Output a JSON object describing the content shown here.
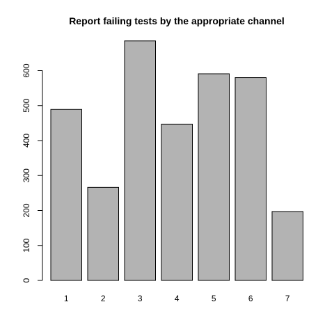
{
  "chart_data": {
    "type": "bar",
    "title": "Report failing tests by the appropriate channel",
    "xlabel": "",
    "ylabel": "",
    "categories": [
      "1",
      "2",
      "3",
      "4",
      "5",
      "6",
      "7"
    ],
    "values": [
      489,
      266,
      685,
      447,
      591,
      580,
      197
    ],
    "ylim": [
      0,
      685
    ],
    "yticks": [
      0,
      100,
      200,
      300,
      400,
      500,
      600
    ],
    "bar_color": "#b3b3b3",
    "bar_border_color": "#000000",
    "axis_color": "#000000",
    "grid": false,
    "legend": "none"
  }
}
